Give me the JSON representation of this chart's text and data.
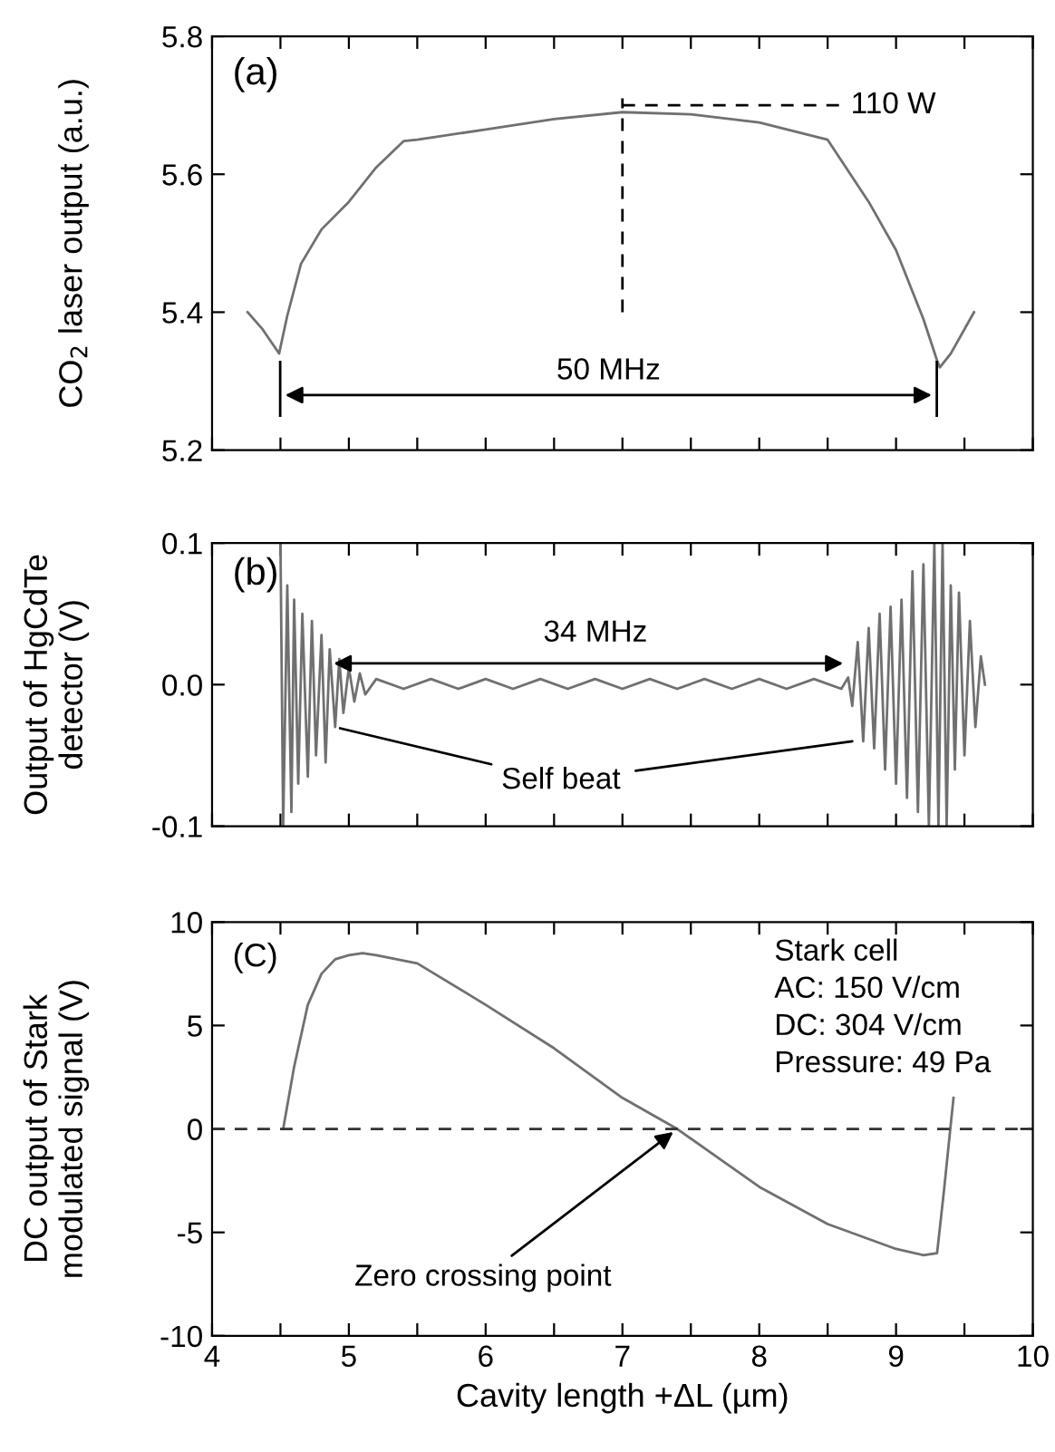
{
  "chart_data": [
    {
      "type": "line",
      "ylabel": "CO$_{2}$ laser output (a.u.)",
      "xlim": [
        4,
        10
      ],
      "ylim": [
        5.2,
        5.8
      ],
      "xticks": [
        {
          "value": 4,
          "label": null
        },
        {
          "value": 4.5,
          "label": null
        },
        {
          "value": 5,
          "label": null
        },
        {
          "value": 5.5,
          "label": null
        },
        {
          "value": 6,
          "label": null
        },
        {
          "value": 6.5,
          "label": null
        },
        {
          "value": 7,
          "label": null
        },
        {
          "value": 7.5,
          "label": null
        },
        {
          "value": 8,
          "label": null
        },
        {
          "value": 8.5,
          "label": null
        },
        {
          "value": 9,
          "label": null
        },
        {
          "value": 9.5,
          "label": null
        },
        {
          "value": 10,
          "label": null
        }
      ],
      "yticks": [
        5.2,
        5.4,
        5.6,
        5.8
      ],
      "tick_labels": "y",
      "grid": false,
      "series": [
        {
          "color": "#707070",
          "x": [
            4.26,
            4.37,
            4.49,
            4.55,
            4.65,
            4.8,
            5.0,
            5.2,
            5.4,
            5.5,
            6.0,
            6.5,
            7.0,
            7.5,
            8.0,
            8.5,
            8.8,
            9.0,
            9.2,
            9.3,
            9.32,
            9.4,
            9.57
          ],
          "values": [
            5.4,
            5.375,
            5.34,
            5.395,
            5.47,
            5.52,
            5.56,
            5.61,
            5.648,
            5.65,
            5.665,
            5.68,
            5.69,
            5.687,
            5.675,
            5.65,
            5.56,
            5.49,
            5.39,
            5.33,
            5.32,
            5.34,
            5.4
          ]
        },
        {
          "color": "#000000",
          "line_style": "dashed",
          "x": [
            7,
            7
          ],
          "values": [
            5.4,
            5.71
          ]
        },
        {
          "color": "#000000",
          "line_style": "dashed",
          "x": [
            7,
            8.6
          ],
          "values": [
            5.7,
            5.7
          ]
        }
      ],
      "annotations": [
        "(a)",
        "110 W",
        "50 MHz"
      ]
    },
    {
      "type": "line",
      "ylabel": "Output of HgCdTe\ndetector (V)",
      "xlim": [
        4,
        10
      ],
      "ylim": [
        -0.1,
        0.1
      ],
      "xticks": [
        {
          "value": 4,
          "label": null
        },
        {
          "value": 4.5,
          "label": null
        },
        {
          "value": 5,
          "label": null
        },
        {
          "value": 5.5,
          "label": null
        },
        {
          "value": 6,
          "label": null
        },
        {
          "value": 6.5,
          "label": null
        },
        {
          "value": 7,
          "label": null
        },
        {
          "value": 7.5,
          "label": null
        },
        {
          "value": 8,
          "label": null
        },
        {
          "value": 8.5,
          "label": null
        },
        {
          "value": 9,
          "label": null
        },
        {
          "value": 9.5,
          "label": null
        },
        {
          "value": 10,
          "label": null
        }
      ],
      "yticks": [
        -0.1,
        {
          "value": 0,
          "label": "0.0"
        },
        0.1
      ],
      "tick_labels": "y",
      "grid": false,
      "series": [
        {
          "color": "#707070",
          "x": [
            4.5,
            4.52,
            4.55,
            4.58,
            4.6,
            4.63,
            4.66,
            4.7,
            4.73,
            4.76,
            4.8,
            4.83,
            4.86,
            4.9,
            4.93,
            4.96,
            5.0,
            5.04,
            5.08,
            5.12,
            5.2,
            5.4,
            5.6,
            5.8,
            6.0,
            6.2,
            6.4,
            6.6,
            6.8,
            7.0,
            7.2,
            7.4,
            7.6,
            7.8,
            8.0,
            8.2,
            8.4,
            8.6,
            8.65,
            8.68,
            8.72,
            8.76,
            8.8,
            8.84,
            8.88,
            8.92,
            8.96,
            9.0,
            9.04,
            9.08,
            9.12,
            9.16,
            9.2,
            9.24,
            9.28,
            9.31,
            9.34,
            9.37,
            9.4,
            9.43,
            9.46,
            9.5,
            9.54,
            9.58,
            9.62,
            9.65
          ],
          "values": [
            0.1,
            -0.1,
            0.07,
            -0.09,
            0.06,
            -0.07,
            0.05,
            -0.065,
            0.045,
            -0.05,
            0.035,
            -0.055,
            0.025,
            -0.03,
            0.018,
            -0.02,
            0.012,
            -0.012,
            0.008,
            -0.007,
            0.004,
            -0.003,
            0.004,
            -0.003,
            0.004,
            -0.003,
            0.004,
            -0.003,
            0.004,
            -0.003,
            0.004,
            -0.003,
            0.004,
            -0.003,
            0.004,
            -0.003,
            0.004,
            -0.003,
            0.005,
            -0.015,
            0.03,
            -0.04,
            0.04,
            -0.045,
            0.05,
            -0.06,
            0.055,
            -0.07,
            0.06,
            -0.08,
            0.08,
            -0.09,
            0.085,
            -0.1,
            0.1,
            -0.1,
            0.1,
            -0.1,
            0.07,
            -0.06,
            0.065,
            -0.05,
            0.045,
            -0.03,
            0.02,
            0.0
          ]
        }
      ],
      "annotations": [
        "(b)",
        "34 MHz",
        {
          "text": "Self beat",
          "x": 4.9,
          "y": -0.03
        }
      ]
    },
    {
      "type": "line",
      "xlabel": "Cavity length +ΔL (µm)",
      "ylabel": "DC output of Stark\nmodulated signal (V)",
      "xlim": [
        4,
        10
      ],
      "ylim": [
        -10,
        10
      ],
      "xticks": [
        4,
        {
          "value": 4.5,
          "label": null
        },
        5,
        {
          "value": 5.5,
          "label": null
        },
        6,
        {
          "value": 6.5,
          "label": null
        },
        7,
        {
          "value": 7.5,
          "label": null
        },
        8,
        {
          "value": 8.5,
          "label": null
        },
        9,
        {
          "value": 9.5,
          "label": null
        },
        10
      ],
      "yticks": [
        -10,
        -5,
        0,
        5,
        10
      ],
      "grid": false,
      "ref_lines": [
        {
          "axis": "y",
          "value": 0,
          "line_style": "dashed",
          "color": "#333333"
        }
      ],
      "series": [
        {
          "color": "#707070",
          "x": [
            4.52,
            4.6,
            4.7,
            4.8,
            4.9,
            5.0,
            5.1,
            5.2,
            5.5,
            6.0,
            6.5,
            7.0,
            7.4,
            8.0,
            8.5,
            9.0,
            9.2,
            9.3,
            9.35,
            9.42
          ],
          "values": [
            0,
            3,
            6,
            7.5,
            8.2,
            8.4,
            8.5,
            8.4,
            8.0,
            6.0,
            3.9,
            1.5,
            0,
            -2.8,
            -4.6,
            -5.8,
            -6.1,
            -6.0,
            -3,
            1.5
          ]
        }
      ],
      "annotations": [
        "(C)",
        "Stark cell",
        "AC: 150 V/cm",
        "DC: 304 V/cm",
        "Pressure: 49 Pa",
        {
          "text": "Zero crossing point",
          "x": 7.4,
          "y": 0
        }
      ]
    }
  ]
}
